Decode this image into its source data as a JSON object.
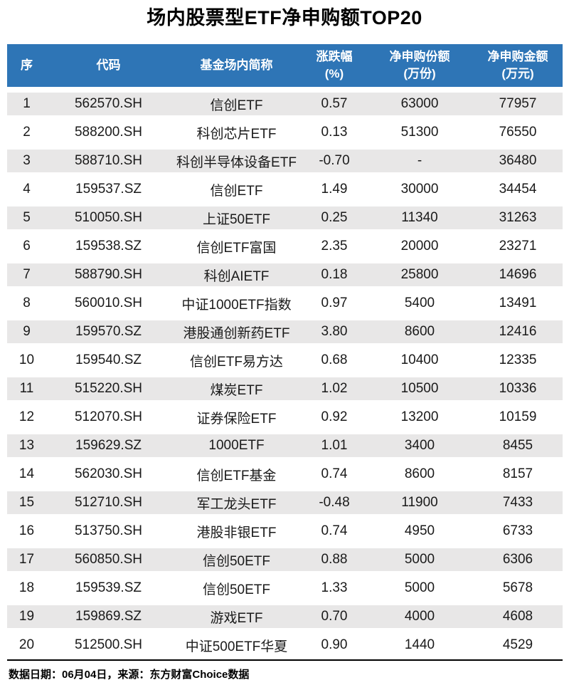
{
  "title": "场内股票型ETF净申购额TOP20",
  "header": {
    "cells": [
      {
        "label": "序",
        "unit": ""
      },
      {
        "label": "代码",
        "unit": ""
      },
      {
        "label": "基金场内简称",
        "unit": ""
      },
      {
        "label": "涨跌幅",
        "unit": "(%)"
      },
      {
        "label": "净申购份额",
        "unit": "(万份)"
      },
      {
        "label": "净申购金额",
        "unit": "(万元)"
      }
    ]
  },
  "chart_data": {
    "type": "table",
    "title": "场内股票型ETF净申购额TOP20",
    "columns": [
      "序",
      "代码",
      "基金场内简称",
      "涨跌幅(%)",
      "净申购份额(万份)",
      "净申购金额(万元)"
    ],
    "rows": [
      [
        "1",
        "562570.SH",
        "信创ETF",
        "0.57",
        "63000",
        "77957"
      ],
      [
        "2",
        "588200.SH",
        "科创芯片ETF",
        "0.13",
        "51300",
        "76550"
      ],
      [
        "3",
        "588710.SH",
        "科创半导体设备ETF",
        "-0.70",
        "-",
        "36480"
      ],
      [
        "4",
        "159537.SZ",
        "信创ETF",
        "1.49",
        "30000",
        "34454"
      ],
      [
        "5",
        "510050.SH",
        "上证50ETF",
        "0.25",
        "11340",
        "31263"
      ],
      [
        "6",
        "159538.SZ",
        "信创ETF富国",
        "2.35",
        "20000",
        "23271"
      ],
      [
        "7",
        "588790.SH",
        "科创AIETF",
        "0.18",
        "25800",
        "14696"
      ],
      [
        "8",
        "560010.SH",
        "中证1000ETF指数",
        "0.97",
        "5400",
        "13491"
      ],
      [
        "9",
        "159570.SZ",
        "港股通创新药ETF",
        "3.80",
        "8600",
        "12416"
      ],
      [
        "10",
        "159540.SZ",
        "信创ETF易方达",
        "0.68",
        "10400",
        "12335"
      ],
      [
        "11",
        "515220.SH",
        "煤炭ETF",
        "1.02",
        "10500",
        "10336"
      ],
      [
        "12",
        "512070.SH",
        "证券保险ETF",
        "0.92",
        "13200",
        "10159"
      ],
      [
        "13",
        "159629.SZ",
        "1000ETF",
        "1.01",
        "3400",
        "8455"
      ],
      [
        "14",
        "562030.SH",
        "信创ETF基金",
        "0.74",
        "8600",
        "8157"
      ],
      [
        "15",
        "512710.SH",
        "军工龙头ETF",
        "-0.48",
        "11900",
        "7433"
      ],
      [
        "16",
        "513750.SH",
        "港股非银ETF",
        "0.74",
        "4950",
        "6733"
      ],
      [
        "17",
        "560850.SH",
        "信创50ETF",
        "0.88",
        "5000",
        "6306"
      ],
      [
        "18",
        "159539.SZ",
        "信创50ETF",
        "1.33",
        "5000",
        "5678"
      ],
      [
        "19",
        "159869.SZ",
        "游戏ETF",
        "0.70",
        "4000",
        "4608"
      ],
      [
        "20",
        "512500.SH",
        "中证500ETF华夏",
        "0.90",
        "1440",
        "4529"
      ]
    ],
    "layout": {
      "striped_rows": "odd",
      "header_position": "top",
      "alignment": "center"
    }
  },
  "footer": {
    "note": "数据日期：06月04日，来源：东方财富Choice数据"
  },
  "colors": {
    "header_bg": "#2E75B6",
    "header_text": "#FFFFFF",
    "row_alt_bg": "#E8E7E7",
    "row_bg": "#FFFFFF",
    "body_text": "#1A1A1A",
    "divider": "#000000"
  }
}
